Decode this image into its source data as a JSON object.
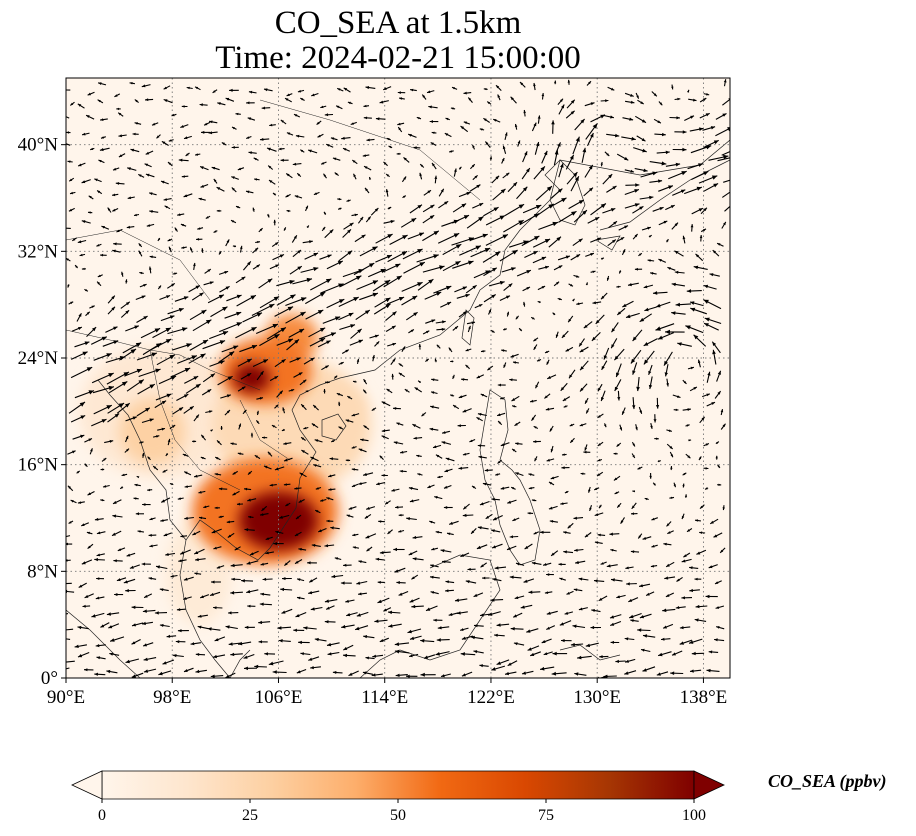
{
  "title": {
    "line1": "CO_SEA at 1.5km",
    "line2": "Time: 2024-02-21 15:00:00"
  },
  "map": {
    "lon_range": [
      90,
      140
    ],
    "lat_range": [
      0,
      45
    ],
    "lon_ticks": [
      {
        "value": 90,
        "label": "90°E"
      },
      {
        "value": 98,
        "label": "98°E"
      },
      {
        "value": 106,
        "label": "106°E"
      },
      {
        "value": 114,
        "label": "114°E"
      },
      {
        "value": 122,
        "label": "122°E"
      },
      {
        "value": 130,
        "label": "130°E"
      },
      {
        "value": 138,
        "label": "138°E"
      }
    ],
    "lat_ticks": [
      {
        "value": 0,
        "label": "0°"
      },
      {
        "value": 8,
        "label": "8°N"
      },
      {
        "value": 16,
        "label": "16°N"
      },
      {
        "value": 24,
        "label": "24°N"
      },
      {
        "value": 32,
        "label": "32°N"
      },
      {
        "value": 40,
        "label": "40°N"
      }
    ],
    "gridlines": true,
    "concentration_blobs": [
      {
        "lon": 106,
        "lat": 11.8,
        "rlon": 3.0,
        "rlat": 2.2,
        "value": 100
      },
      {
        "lon": 105,
        "lat": 12.5,
        "rlon": 5.5,
        "rlat": 4.0,
        "value": 55
      },
      {
        "lon": 104,
        "lat": 22.5,
        "rlon": 1.4,
        "rlat": 1.1,
        "value": 100
      },
      {
        "lon": 105,
        "lat": 23.0,
        "rlon": 3.5,
        "rlat": 2.5,
        "value": 55
      },
      {
        "lon": 107,
        "lat": 25.5,
        "rlon": 2.0,
        "rlat": 1.8,
        "value": 50
      },
      {
        "lon": 107,
        "lat": 19.0,
        "rlon": 6.0,
        "rlat": 5.0,
        "value": 22
      },
      {
        "lon": 96.5,
        "lat": 18.5,
        "rlon": 2.5,
        "rlat": 2.5,
        "value": 28
      },
      {
        "lon": 97,
        "lat": 20,
        "rlon": 6,
        "rlat": 5,
        "value": 12
      },
      {
        "lon": 100,
        "lat": 8,
        "rlon": 2.5,
        "rlat": 4,
        "value": 10
      },
      {
        "lon": 110,
        "lat": 20.5,
        "rlon": 2.5,
        "rlat": 1.5,
        "value": 18
      }
    ]
  },
  "colorbar": {
    "label": "CO_SEA (ppbv)",
    "min": 0,
    "max": 100,
    "ticks": [
      {
        "value": 0,
        "label": "0"
      },
      {
        "value": 25,
        "label": "25"
      },
      {
        "value": 50,
        "label": "50"
      },
      {
        "value": 75,
        "label": "75"
      },
      {
        "value": 100,
        "label": "100"
      }
    ],
    "colors": [
      "#fff5eb",
      "#fee6ce",
      "#fdd0a2",
      "#fdae6b",
      "#f16913",
      "#d94801",
      "#a63603",
      "#7f0000"
    ]
  }
}
